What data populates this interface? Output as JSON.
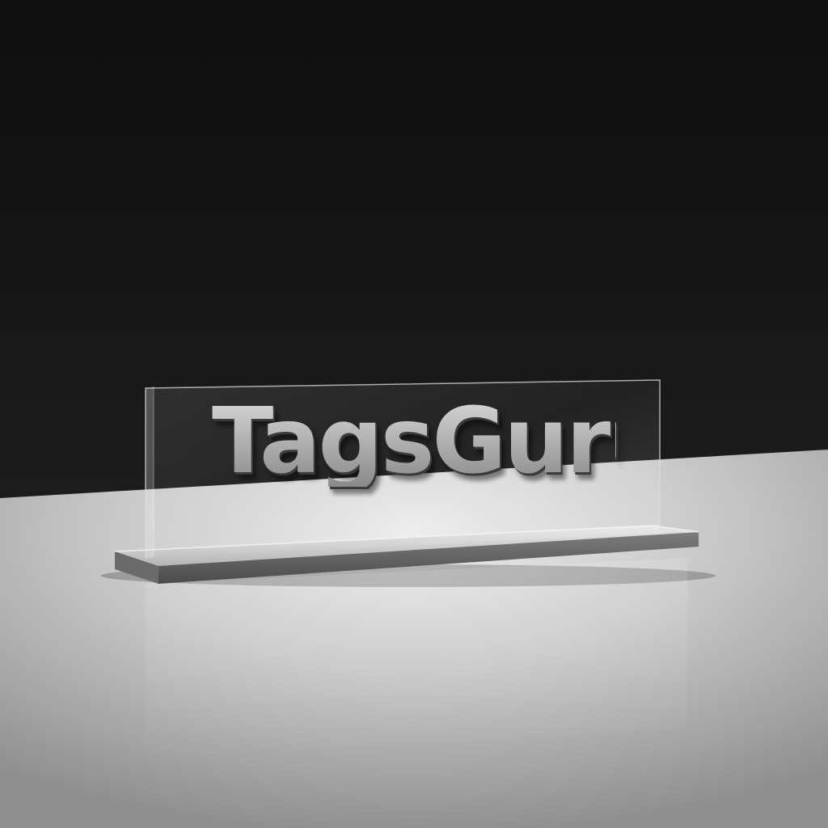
{
  "sign": {
    "text": "TagsGuru"
  },
  "colors": {
    "wall": "#151515",
    "floor": "#d8d8d8",
    "lettering": "#b8b8b8",
    "base": "#8a8a8a"
  }
}
